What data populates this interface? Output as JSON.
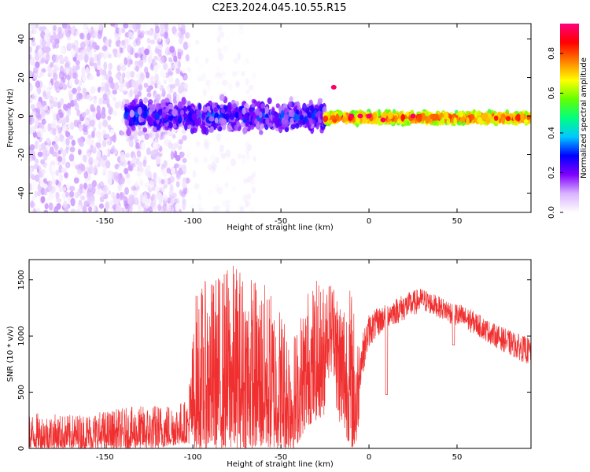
{
  "title": "C2E3.2024.045.10.55.R15",
  "chart_data": [
    {
      "type": "heatmap",
      "xlabel": "Height of straight line (km)",
      "ylabel": "Frequency (Hz)",
      "xlim": [
        -193,
        92
      ],
      "ylim": [
        -50,
        48
      ],
      "xticks": [
        -150,
        -100,
        -50,
        0,
        50
      ],
      "yticks": [
        -40,
        -20,
        0,
        20,
        40
      ],
      "colorbar": {
        "label": "Normalized spectral amplitude",
        "range": [
          0,
          0.95
        ],
        "ticks": [
          0.0,
          0.2,
          0.4,
          0.6,
          0.8
        ],
        "colors": [
          "#ffffff",
          "#d9b3ff",
          "#8000ff",
          "#0000ff",
          "#00c8ff",
          "#00ff80",
          "#64ff00",
          "#ffff00",
          "#ff8000",
          "#ff0000",
          "#ff0080"
        ]
      },
      "regions": [
        {
          "x": [
            -193,
            -103
          ],
          "freq_range": [
            -50,
            48
          ],
          "amplitude": [
            0.0,
            0.12
          ],
          "density": "dense scattered noise"
        },
        {
          "x": [
            -103,
            -65
          ],
          "freq_range": [
            -50,
            48
          ],
          "amplitude": [
            0.0,
            0.05
          ],
          "density": "sparse faint noise"
        },
        {
          "x": [
            -138,
            -25
          ],
          "freq_range": [
            -10,
            10
          ],
          "amplitude": [
            0.1,
            0.35
          ],
          "density": "dense band"
        },
        {
          "x": [
            -25,
            92
          ],
          "freq_range": [
            -4,
            2
          ],
          "amplitude": [
            0.3,
            0.95
          ],
          "density": "narrow continuous band"
        }
      ],
      "hotspots": [
        {
          "x": -20,
          "freq": 15
        },
        {
          "x": -10,
          "freq": 0
        },
        {
          "x": -5,
          "freq": 0
        },
        {
          "x": 0,
          "freq": 0
        },
        {
          "x": 8,
          "freq": -2
        },
        {
          "x": 25,
          "freq": 0
        }
      ]
    },
    {
      "type": "line",
      "xlabel": "Height of straight line (km)",
      "ylabel": "SNR (10 * v/v)",
      "xlim": [
        -193,
        92
      ],
      "ylim": [
        0,
        1680
      ],
      "xticks": [
        -150,
        -100,
        -50,
        0,
        50
      ],
      "yticks": [
        0,
        500,
        1000,
        1500
      ],
      "color": "#f03030",
      "envelope": {
        "x": [
          -193,
          -170,
          -140,
          -120,
          -103,
          -98,
          -90,
          -80,
          -75,
          -70,
          -60,
          -50,
          -42,
          -35,
          -30,
          -20,
          -10,
          -7,
          -5,
          0,
          10,
          20,
          30,
          40,
          50,
          60,
          70,
          80,
          92
        ],
        "min": [
          0,
          0,
          0,
          0,
          50,
          0,
          0,
          0,
          0,
          0,
          0,
          0,
          0,
          200,
          250,
          350,
          0,
          0,
          400,
          800,
          1000,
          1050,
          1150,
          1100,
          1000,
          950,
          850,
          750,
          650
        ],
        "max": [
          320,
          300,
          360,
          400,
          430,
          1450,
          1520,
          1650,
          1670,
          1600,
          1500,
          1300,
          1050,
          1450,
          1500,
          1500,
          1450,
          1100,
          950,
          1200,
          1300,
          1380,
          1430,
          1350,
          1300,
          1220,
          1120,
          1050,
          980
        ]
      },
      "dips": [
        {
          "x": 10,
          "y": 480
        },
        {
          "x": 48,
          "y": 920
        }
      ]
    }
  ]
}
